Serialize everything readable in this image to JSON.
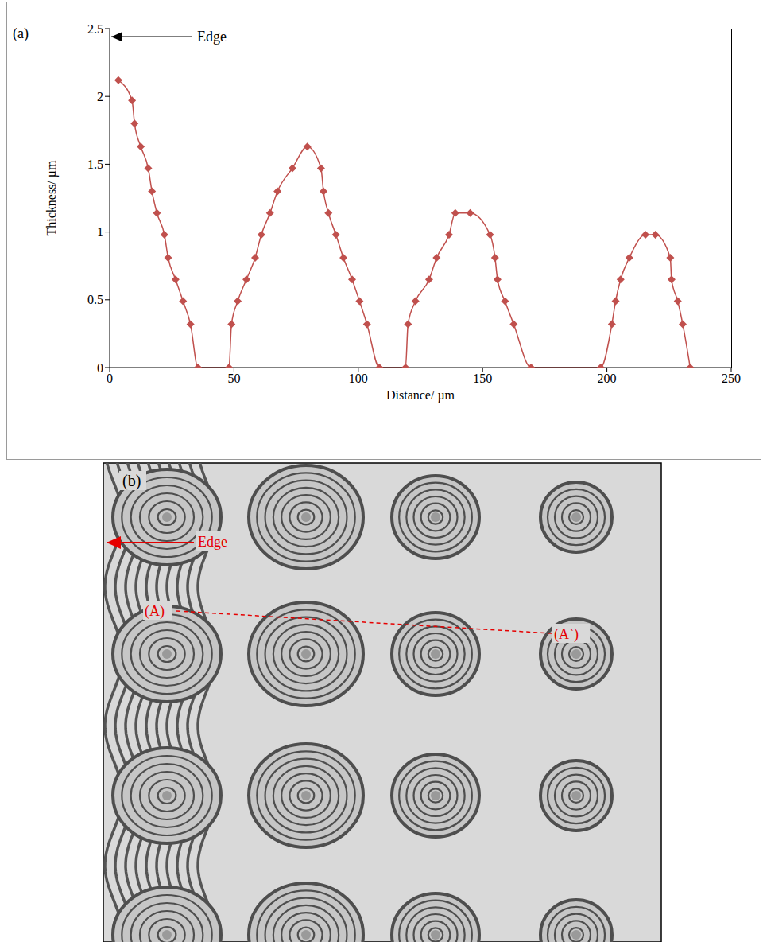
{
  "chart_data": {
    "type": "line",
    "panel": "(a)",
    "x_label": "Distance/ µm",
    "y_label": "Thickness/ µm",
    "x": [
      3.5,
      9,
      10,
      12.5,
      15.5,
      17,
      19,
      22,
      23.5,
      26.5,
      29.5,
      32.5,
      35.5,
      48,
      49,
      51.5,
      55,
      58.5,
      61,
      64.5,
      67.5,
      73.5,
      79.5,
      85,
      86,
      88,
      91,
      94,
      97.5,
      100.5,
      103.5,
      108.5,
      119,
      120,
      123,
      128.5,
      131.5,
      136.5,
      139,
      145,
      153,
      155,
      156,
      159,
      162.5,
      169.5,
      197.5,
      202,
      203.5,
      205.5,
      209,
      215.5,
      219.5,
      225.5,
      226,
      228.5,
      230.5,
      233.5
    ],
    "values": [
      2.12,
      1.97,
      1.8,
      1.63,
      1.47,
      1.3,
      1.14,
      0.98,
      0.81,
      0.65,
      0.49,
      0.32,
      0,
      0,
      0.32,
      0.49,
      0.65,
      0.81,
      0.98,
      1.14,
      1.3,
      1.47,
      1.63,
      1.47,
      1.3,
      1.14,
      0.98,
      0.81,
      0.65,
      0.49,
      0.32,
      0,
      0,
      0.32,
      0.49,
      0.65,
      0.81,
      0.98,
      1.14,
      1.14,
      0.98,
      0.81,
      0.65,
      0.49,
      0.32,
      0,
      0,
      0.32,
      0.49,
      0.65,
      0.81,
      0.98,
      0.98,
      0.81,
      0.65,
      0.49,
      0.32,
      0
    ],
    "color": "#c0504d",
    "marker": "diamond",
    "xlim": [
      0,
      250
    ],
    "xticks": [
      0,
      50,
      100,
      150,
      200,
      250
    ],
    "ylim": [
      0,
      2.5
    ],
    "yticks": [
      0,
      0.5,
      1,
      1.5,
      2,
      2.5
    ],
    "grid": false,
    "annotations": [
      {
        "text": "Edge",
        "x": 0,
        "y": 2.44
      }
    ]
  },
  "image_panel": {
    "panel": "(b)",
    "annotations": [
      {
        "text": "Edge"
      },
      {
        "text": "(A)"
      },
      {
        "text": "(A`)"
      }
    ]
  }
}
